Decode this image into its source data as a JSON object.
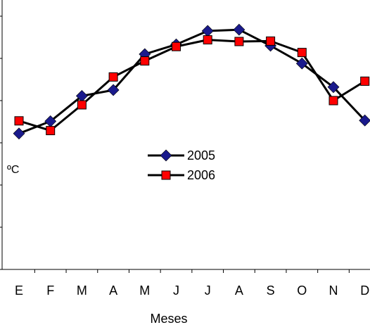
{
  "chart_data": {
    "type": "line",
    "xlabel": "Meses",
    "ylabel": "ºC",
    "categories": [
      "E",
      "F",
      "M",
      "A",
      "M",
      "J",
      "J",
      "A",
      "S",
      "O",
      "N",
      "D"
    ],
    "ylim": [
      0,
      6.3
    ],
    "grid": false,
    "legend_position": "center",
    "series": [
      {
        "name": "2005",
        "color": "#1a1a8c",
        "marker": "diamond",
        "values": [
          3.22,
          3.51,
          4.11,
          4.25,
          5.1,
          5.33,
          5.65,
          5.68,
          5.3,
          4.88,
          4.32,
          3.53
        ]
      },
      {
        "name": "2006",
        "color": "#ff0000",
        "marker": "square",
        "values": [
          3.52,
          3.29,
          3.9,
          4.56,
          4.94,
          5.28,
          5.44,
          5.4,
          5.41,
          5.14,
          4.0,
          4.46
        ]
      }
    ]
  }
}
